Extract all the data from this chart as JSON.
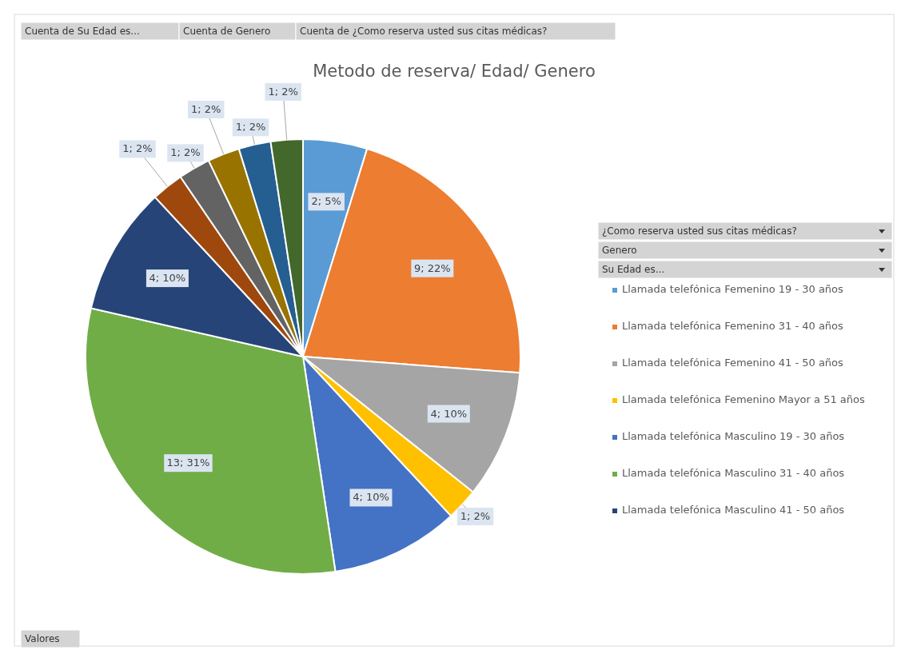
{
  "chart_data": {
    "type": "pie",
    "title": "Metodo de reserva/ Edad/ Genero",
    "categories": [
      "Llamada telefónica Femenino 19 - 30 años",
      "Llamada telefónica Femenino 31 - 40 años",
      "Llamada telefónica Femenino 41 - 50 años",
      "Llamada telefónica Femenino Mayor a 51 años",
      "Llamada telefónica Masculino 19 - 30 años",
      "Llamada telefónica Masculino 31 - 40 años",
      "Llamada telefónica Masculino 41 - 50 años",
      null,
      null,
      null,
      null,
      null
    ],
    "values": [
      2,
      9,
      4,
      1,
      4,
      13,
      4,
      1,
      1,
      1,
      1,
      1
    ],
    "colors": [
      "#5b9bd5",
      "#ed7d31",
      "#a5a5a5",
      "#ffc000",
      "#4472c4",
      "#70ad47",
      "#264478",
      "#9e480e",
      "#636363",
      "#997300",
      "#255e91",
      "#43682b"
    ],
    "value_labels": [
      "2; 5%",
      "9; 22%",
      "4; 10%",
      "1; 2%",
      "4; 10%",
      "13; 31%",
      "4; 10%",
      "1; 2%",
      "1; 2%",
      "1; 2%",
      "1; 2%",
      "1; 2%"
    ],
    "legend": "right",
    "annotations": [
      "Cuenta de Su Edad es...",
      "Cuenta de Genero",
      "Cuenta de ¿Como reserva usted sus citas médicas?",
      "¿Como reserva usted sus citas médicas?",
      "Genero",
      "Su Edad es...",
      "Valores"
    ]
  }
}
